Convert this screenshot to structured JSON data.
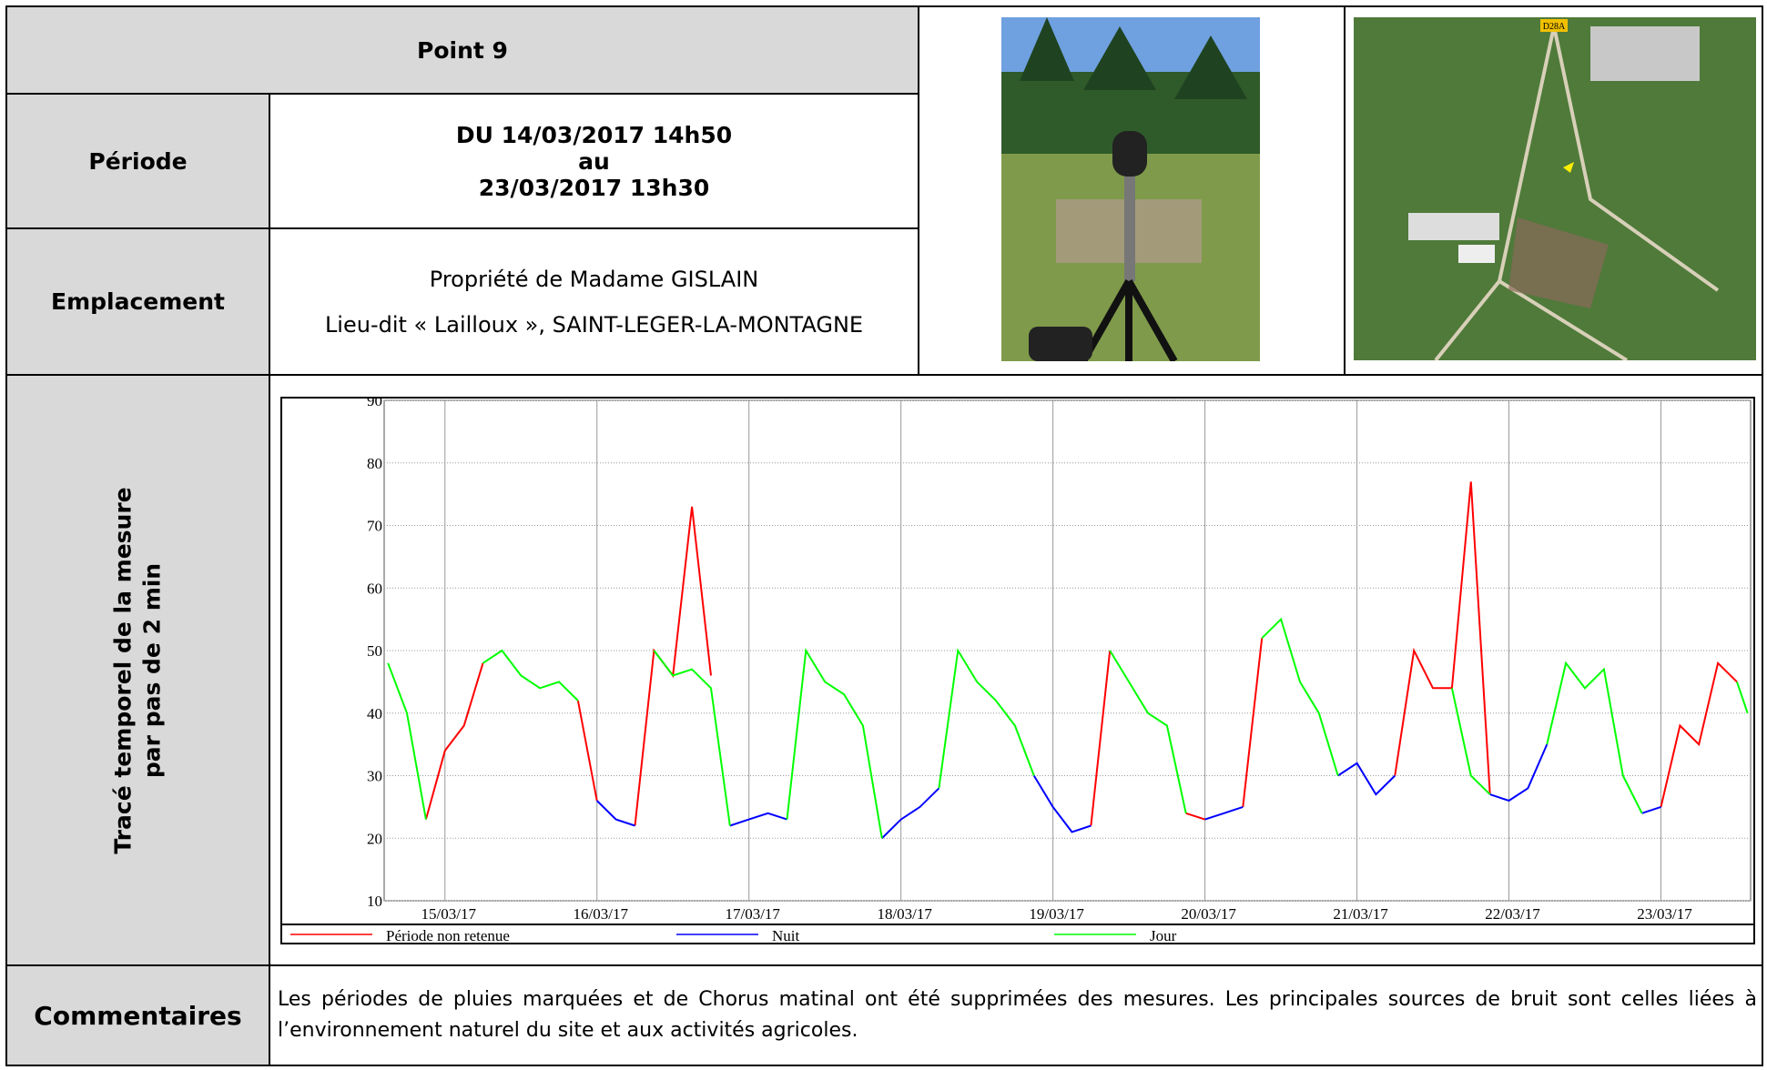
{
  "title": "Point 9",
  "period": {
    "label": "Période",
    "lines": [
      "DU 14/03/2017 14h50",
      "au",
      "23/03/2017 13h30"
    ]
  },
  "location": {
    "label": "Emplacement",
    "lines": [
      "Propriété de Madame GISLAIN",
      "Lieu-dit « Lailloux », SAINT-LEGER-LA-MONTAGNE"
    ]
  },
  "map_tag": "D28A",
  "chart_label": [
    "Tracé temporel de la mesure",
    "par pas de 2 min"
  ],
  "comments": {
    "label": "Commentaires",
    "text": "Les périodes de pluies marquées et de Chorus matinal ont été supprimées des mesures. Les principales sources de bruit sont celles liées à l’environnement naturel du site et aux activités agricoles."
  },
  "chart_data": {
    "type": "line",
    "grid": true,
    "xlim": [
      0.6,
      9.59
    ],
    "ylim": [
      10,
      90
    ],
    "yticks": [
      10,
      20,
      30,
      40,
      50,
      60,
      70,
      80,
      90
    ],
    "xticks": [
      {
        "value": 1,
        "label": "15/03/17"
      },
      {
        "value": 2,
        "label": "16/03/17"
      },
      {
        "value": 3,
        "label": "17/03/17"
      },
      {
        "value": 4,
        "label": "18/03/17"
      },
      {
        "value": 5,
        "label": "19/03/17"
      },
      {
        "value": 6,
        "label": "20/03/17"
      },
      {
        "value": 7,
        "label": "21/03/17"
      },
      {
        "value": 8,
        "label": "22/03/17"
      },
      {
        "value": 9,
        "label": "23/03/17"
      }
    ],
    "x": [
      0.625,
      0.75,
      0.875,
      1,
      1.125,
      1.25,
      1.375,
      1.5,
      1.625,
      1.75,
      1.875,
      2,
      2.125,
      2.25,
      2.375,
      2.5,
      2.625,
      2.75,
      2.875,
      3,
      3.125,
      3.25,
      3.375,
      3.5,
      3.625,
      3.75,
      3.875,
      4,
      4.125,
      4.25,
      4.375,
      4.5,
      4.625,
      4.75,
      4.875,
      5,
      5.125,
      5.25,
      5.375,
      5.5,
      5.625,
      5.75,
      5.875,
      6,
      6.125,
      6.25,
      6.375,
      6.5,
      6.625,
      6.75,
      6.875,
      7,
      7.125,
      7.25,
      7.375,
      7.5,
      7.625,
      7.75,
      7.875,
      8,
      8.125,
      8.25,
      8.375,
      8.5,
      8.625,
      8.75,
      8.875,
      9,
      9.125,
      9.25,
      9.375,
      9.5,
      9.57
    ],
    "series": [
      {
        "name": "Période non retenue",
        "color": "#ff0000",
        "values": [
          null,
          null,
          23,
          34,
          38,
          48,
          null,
          null,
          null,
          null,
          42,
          26,
          null,
          22,
          50,
          46,
          73,
          46,
          null,
          null,
          null,
          null,
          null,
          null,
          null,
          null,
          null,
          null,
          null,
          null,
          null,
          null,
          null,
          null,
          null,
          null,
          null,
          22,
          50,
          null,
          null,
          null,
          24,
          23,
          null,
          25,
          52,
          null,
          null,
          null,
          null,
          null,
          null,
          30,
          50,
          44,
          44,
          77,
          27,
          null,
          null,
          null,
          null,
          null,
          null,
          null,
          null,
          25,
          38,
          35,
          48,
          45,
          null
        ]
      },
      {
        "name": "Nuit",
        "color": "#0000ff",
        "values": [
          null,
          null,
          null,
          null,
          null,
          null,
          null,
          null,
          null,
          null,
          null,
          26,
          23,
          22,
          null,
          null,
          null,
          null,
          22,
          23,
          24,
          23,
          null,
          null,
          null,
          null,
          20,
          23,
          25,
          28,
          null,
          null,
          null,
          null,
          30,
          25,
          21,
          22,
          null,
          null,
          null,
          null,
          null,
          23,
          24,
          25,
          null,
          null,
          null,
          null,
          30,
          32,
          27,
          30,
          null,
          null,
          null,
          null,
          27,
          26,
          28,
          35,
          null,
          null,
          null,
          null,
          24,
          25,
          null,
          null,
          null,
          null,
          null
        ]
      },
      {
        "name": "Jour",
        "color": "#00ff00",
        "values": [
          48,
          40,
          23,
          null,
          null,
          48,
          50,
          46,
          44,
          45,
          42,
          null,
          null,
          null,
          50,
          46,
          47,
          44,
          22,
          null,
          null,
          23,
          50,
          45,
          43,
          38,
          20,
          null,
          null,
          28,
          50,
          45,
          42,
          38,
          30,
          null,
          null,
          null,
          50,
          45,
          40,
          38,
          24,
          null,
          null,
          null,
          52,
          55,
          45,
          40,
          30,
          null,
          null,
          null,
          null,
          null,
          44,
          30,
          27,
          null,
          null,
          35,
          48,
          44,
          47,
          30,
          24,
          null,
          null,
          null,
          null,
          45,
          40
        ]
      }
    ]
  }
}
